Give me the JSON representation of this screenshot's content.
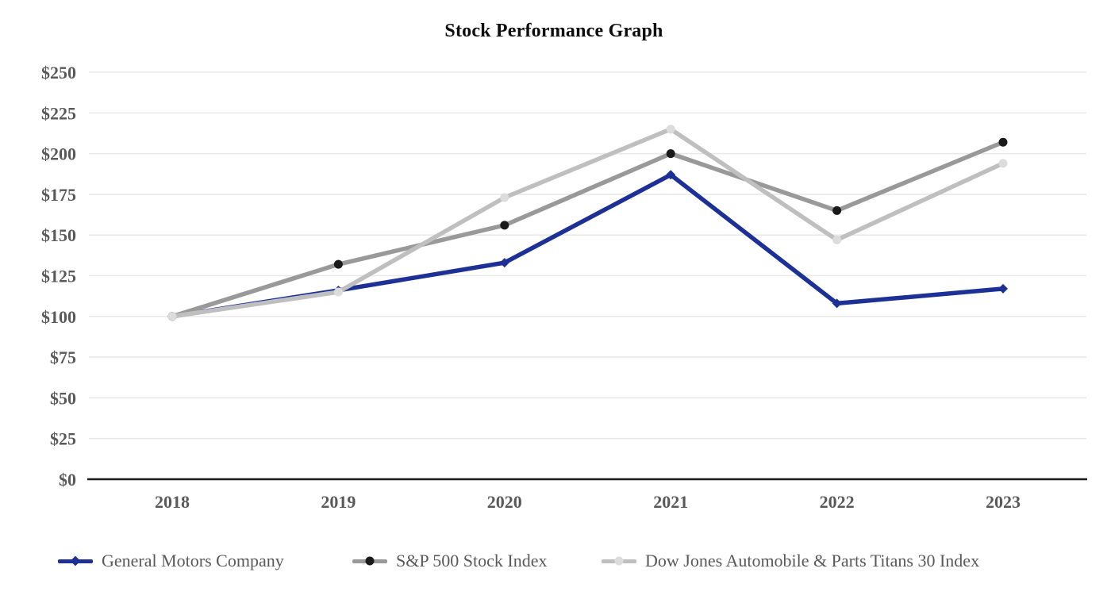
{
  "title": "Stock Performance Graph",
  "colors": {
    "title_text": "#0d0d0d",
    "tick_text": "#595959",
    "legend_text": "#595959",
    "gridline": "#e9e9e9",
    "axis_line": "#1a1a1a",
    "gm_line": "#1c3096",
    "sp_line": "#999999",
    "sp_marker": "#1a1a1a",
    "dow_line": "#bfbfbf",
    "dow_marker": "#dcdcdc"
  },
  "chart_data": {
    "type": "line",
    "title": "Stock Performance Graph",
    "categories": [
      "2018",
      "2019",
      "2020",
      "2021",
      "2022",
      "2023"
    ],
    "series": [
      {
        "name": "General Motors Company",
        "values": [
          100,
          116,
          133,
          187,
          108,
          117
        ],
        "color": "#1c3096",
        "marker_color": "#1c3096",
        "marker_shape": "diamond"
      },
      {
        "name": "S&P 500 Stock Index",
        "values": [
          100,
          132,
          156,
          200,
          165,
          207
        ],
        "color": "#999999",
        "marker_color": "#1a1a1a",
        "marker_shape": "circle"
      },
      {
        "name": "Dow Jones Automobile & Parts Titans 30 Index",
        "values": [
          100,
          115,
          173,
          215,
          147,
          194
        ],
        "color": "#bfbfbf",
        "marker_color": "#dcdcdc",
        "marker_shape": "circle"
      }
    ],
    "xlabel": "",
    "ylabel": "",
    "ylim": [
      0,
      250
    ],
    "ytick_step": 25,
    "ytick_labels": [
      "$0",
      "$25",
      "$50",
      "$75",
      "$100",
      "$125",
      "$150",
      "$175",
      "$200",
      "$225",
      "$250"
    ],
    "grid": true,
    "legend_position": "bottom"
  },
  "legend": {
    "items": [
      {
        "label": "General Motors Company"
      },
      {
        "label": "S&P 500 Stock Index"
      },
      {
        "label": "Dow Jones Automobile & Parts Titans 30 Index"
      }
    ]
  }
}
